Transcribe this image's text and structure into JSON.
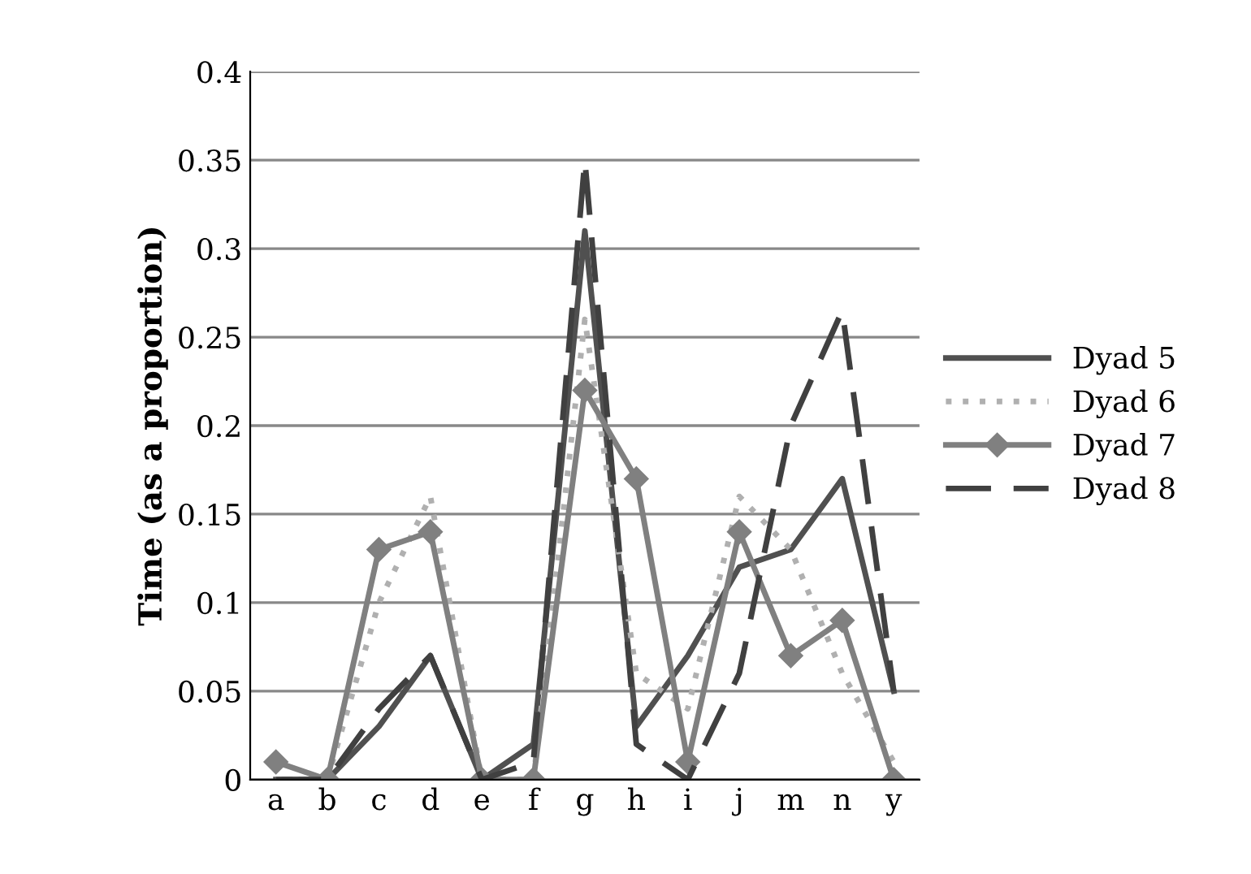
{
  "chart_data": {
    "type": "line",
    "ylabel": "Time (as a proportion)",
    "categories": [
      "a",
      "b",
      "c",
      "d",
      "e",
      "f",
      "g",
      "h",
      "i",
      "j",
      "m",
      "n",
      "y"
    ],
    "series": [
      {
        "name": "Dyad 5",
        "color": "#505050",
        "line_style": "solid",
        "marker": "none",
        "values": [
          0,
          0,
          0.03,
          0.07,
          0,
          0.02,
          0.31,
          0.03,
          0.07,
          0.12,
          0.13,
          0.17,
          0.05
        ]
      },
      {
        "name": "Dyad 6",
        "color": "#b0b0b0",
        "line_style": "dotted",
        "marker": "none",
        "values": [
          0,
          0,
          0.1,
          0.16,
          0,
          0,
          0.26,
          0.06,
          0.04,
          0.16,
          0.13,
          0.06,
          0.01
        ]
      },
      {
        "name": "Dyad 7",
        "color": "#808080",
        "line_style": "solid",
        "marker": "diamond",
        "values": [
          0.01,
          0,
          0.13,
          0.14,
          0,
          0,
          0.22,
          0.17,
          0.01,
          0.14,
          0.07,
          0.09,
          0
        ]
      },
      {
        "name": "Dyad 8",
        "color": "#404040",
        "line_style": "dashed",
        "marker": "none",
        "values": [
          0,
          0,
          0.04,
          0.07,
          0,
          0.01,
          0.35,
          0.02,
          0,
          0.06,
          0.2,
          0.265,
          0.05
        ]
      }
    ],
    "ylim": [
      0,
      0.4
    ],
    "yticks": [
      0,
      0.05,
      0.1,
      0.15,
      0.2,
      0.25,
      0.3,
      0.35,
      0.4
    ],
    "grid": "y",
    "legend": "right"
  }
}
